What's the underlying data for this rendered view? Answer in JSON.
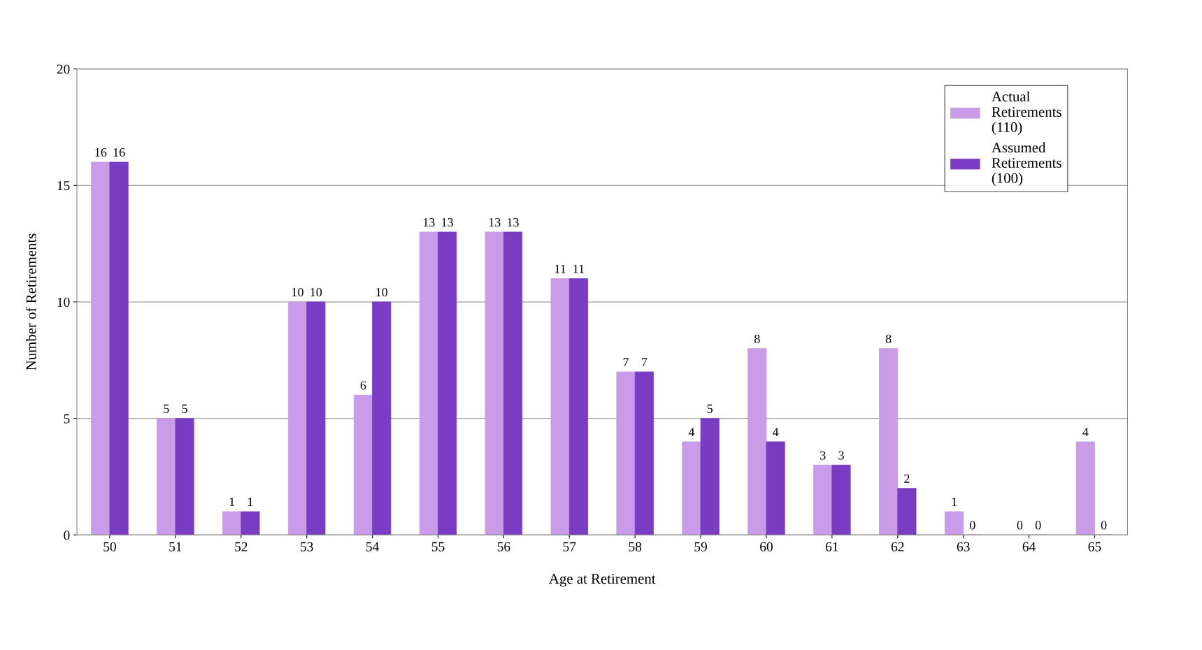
{
  "chart_data": {
    "type": "bar",
    "xlabel": "Age at Retirement",
    "ylabel": "Number of Retirements",
    "categories": [
      "50",
      "51",
      "52",
      "53",
      "54",
      "55",
      "56",
      "57",
      "58",
      "59",
      "60",
      "61",
      "62",
      "63",
      "64",
      "65"
    ],
    "series": [
      {
        "name": "Actual\nRetirements\n(110)",
        "color": "#c99be8",
        "values": [
          16,
          5,
          1,
          10,
          6,
          13,
          13,
          11,
          7,
          4,
          8,
          3,
          8,
          1,
          0,
          4
        ]
      },
      {
        "name": "Assumed\nRetirements\n(100)",
        "color": "#7b3cc4",
        "values": [
          16,
          5,
          1,
          10,
          10,
          13,
          13,
          11,
          7,
          5,
          4,
          3,
          2,
          0,
          0,
          0
        ]
      }
    ],
    "ylim": [
      0,
      20
    ],
    "yticks": [
      0,
      5,
      10,
      15,
      20
    ],
    "grid": "y",
    "legend": "top right",
    "data_labels": true
  }
}
